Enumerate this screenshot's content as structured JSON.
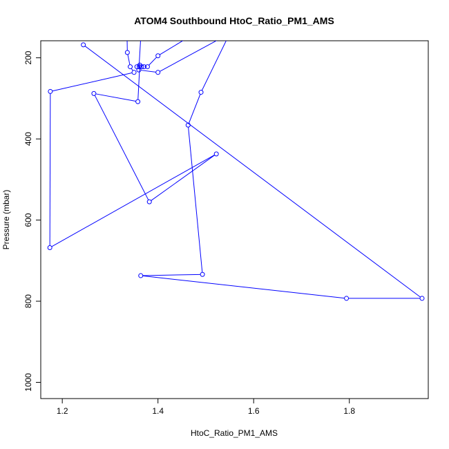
{
  "chart_data": {
    "type": "line",
    "title": "ATOM4 Southbound HtoC_Ratio_PM1_AMS",
    "xlabel": "HtoC_Ratio_PM1_AMS",
    "ylabel": "Pressure (mbar)",
    "xlim": [
      1.155,
      1.965
    ],
    "ylim": [
      1040,
      158
    ],
    "y_reversed": true,
    "x_ticks": [
      "1.2",
      "1.4",
      "1.6",
      "1.8"
    ],
    "x_tick_values": [
      1.2,
      1.4,
      1.6,
      1.8
    ],
    "y_ticks": [
      "200",
      "400",
      "600",
      "800",
      "1000"
    ],
    "y_tick_values": [
      200,
      400,
      600,
      800,
      1000
    ],
    "grid": false,
    "series_color": "#0000ff",
    "series": [
      {
        "marker": "open-circle",
        "points": [
          {
            "x": 1.335,
            "y": 125
          },
          {
            "x": 1.336,
            "y": 187
          },
          {
            "x": 1.342,
            "y": 222
          },
          {
            "x": 1.35,
            "y": 236
          },
          {
            "x": 1.175,
            "y": 283
          },
          {
            "x": 1.174,
            "y": 668
          },
          {
            "x": 1.522,
            "y": 437
          },
          {
            "x": 1.382,
            "y": 555
          },
          {
            "x": 1.266,
            "y": 288
          },
          {
            "x": 1.358,
            "y": 308
          },
          {
            "x": 1.362,
            "y": 218
          },
          {
            "x": 1.356,
            "y": 222
          },
          {
            "x": 1.361,
            "y": 222
          },
          {
            "x": 1.366,
            "y": 222
          },
          {
            "x": 1.371,
            "y": 222
          },
          {
            "x": 1.378,
            "y": 222
          },
          {
            "x": 1.4,
            "y": 195
          },
          {
            "x": 1.47,
            "y": 145
          },
          {
            "x": 1.365,
            "y": 130
          },
          {
            "x": 1.36,
            "y": 230
          },
          {
            "x": 1.4,
            "y": 236
          },
          {
            "x": 1.55,
            "y": 140
          },
          {
            "x": 1.49,
            "y": 285
          },
          {
            "x": 1.463,
            "y": 366
          },
          {
            "x": 1.493,
            "y": 734
          },
          {
            "x": 1.364,
            "y": 737
          },
          {
            "x": 1.794,
            "y": 793
          },
          {
            "x": 1.952,
            "y": 793
          },
          {
            "x": 1.244,
            "y": 168
          }
        ]
      }
    ]
  }
}
